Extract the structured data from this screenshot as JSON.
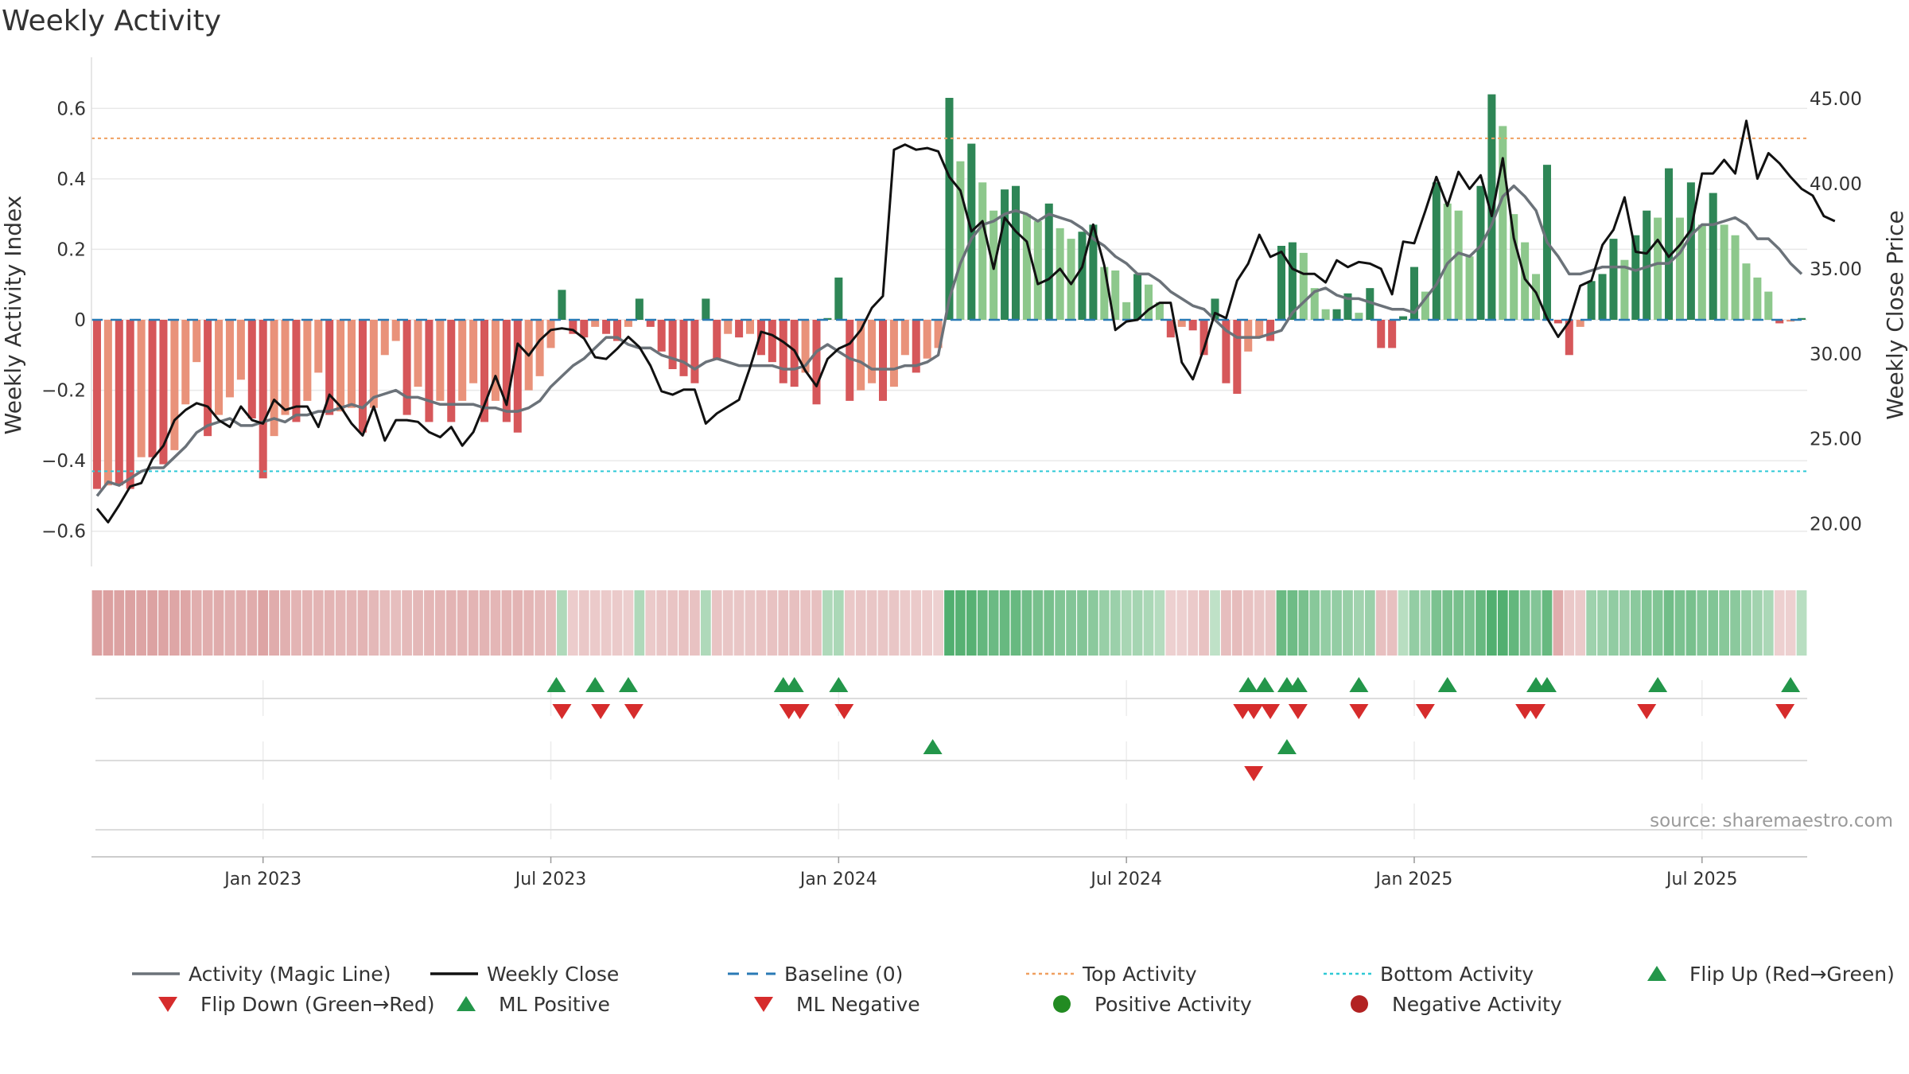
{
  "title": "Weekly Activity",
  "source": "source: sharemaestro.com",
  "chart_data": {
    "type": "bar",
    "title": "Weekly Activity",
    "ylabel": "Weekly Activity Index",
    "y2label": "Weekly Close Price",
    "ylim": [
      -0.7,
      0.7
    ],
    "y2lim": [
      17.5,
      46.5
    ],
    "yticks": [
      -0.6,
      -0.4,
      -0.2,
      0,
      0.2,
      0.4,
      0.6
    ],
    "ytick_labels": [
      "−0.6",
      "−0.4",
      "−0.2",
      "0",
      "0.2",
      "0.4",
      "0.6"
    ],
    "y2ticks": [
      20,
      25,
      30,
      35,
      40,
      45
    ],
    "y2tick_labels": [
      "20.00",
      "25.00",
      "30.00",
      "35.00",
      "40.00",
      "45.00"
    ],
    "xticks": [
      {
        "week": 15,
        "label": "Jan 2023"
      },
      {
        "week": 41,
        "label": "Jul 2023"
      },
      {
        "week": 67,
        "label": "Jan 2024"
      },
      {
        "week": 93,
        "label": "Jul 2024"
      },
      {
        "week": 119,
        "label": "Jan 2025"
      },
      {
        "week": 145,
        "label": "Jul 2025"
      }
    ],
    "top_activity": 0.515,
    "bottom_activity": -0.43,
    "activity": [
      -0.48,
      -0.47,
      -0.47,
      -0.48,
      -0.39,
      -0.39,
      -0.41,
      -0.37,
      -0.24,
      -0.12,
      -0.33,
      -0.27,
      -0.22,
      -0.17,
      -0.28,
      -0.45,
      -0.33,
      -0.27,
      -0.29,
      -0.23,
      -0.15,
      -0.27,
      -0.26,
      -0.25,
      -0.32,
      -0.25,
      -0.1,
      -0.06,
      -0.27,
      -0.19,
      -0.29,
      -0.23,
      -0.29,
      -0.23,
      -0.18,
      -0.29,
      -0.23,
      -0.29,
      -0.32,
      -0.2,
      -0.16,
      -0.08,
      0.085,
      -0.04,
      -0.05,
      -0.02,
      -0.04,
      -0.06,
      -0.02,
      0.06,
      -0.02,
      -0.09,
      -0.14,
      -0.16,
      -0.18,
      0.06,
      -0.11,
      -0.04,
      -0.05,
      -0.04,
      -0.1,
      -0.12,
      -0.18,
      -0.19,
      -0.15,
      -0.24,
      0.005,
      0.12,
      -0.23,
      -0.2,
      -0.18,
      -0.23,
      -0.19,
      -0.1,
      -0.15,
      -0.11,
      -0.08,
      0.63,
      0.45,
      0.5,
      0.39,
      0.31,
      0.37,
      0.38,
      0.3,
      0.28,
      0.33,
      0.26,
      0.23,
      0.25,
      0.27,
      0.15,
      0.14,
      0.05,
      0.13,
      0.1,
      0.05,
      -0.05,
      -0.02,
      -0.03,
      -0.1,
      0.06,
      -0.18,
      -0.21,
      -0.09,
      -0.05,
      -0.06,
      0.21,
      0.22,
      0.19,
      0.09,
      0.03,
      0.03,
      0.075,
      0.02,
      0.09,
      -0.08,
      -0.08,
      0.01,
      0.15,
      0.08,
      0.39,
      0.33,
      0.31,
      0.18,
      0.38,
      0.64,
      0.55,
      0.3,
      0.22,
      0.13,
      0.44,
      -0.01,
      -0.1,
      -0.02,
      0.11,
      0.13,
      0.23,
      0.17,
      0.24,
      0.31,
      0.29,
      0.43,
      0.29,
      0.39,
      0.27,
      0.36,
      0.27,
      0.24,
      0.16,
      0.12,
      0.08,
      -0.01,
      -0.005,
      0.005
    ],
    "close": [
      20.9,
      20.1,
      21.1,
      22.2,
      22.4,
      23.8,
      24.6,
      26.1,
      26.7,
      27.1,
      26.9,
      26.1,
      25.7,
      26.9,
      26.1,
      25.9,
      27.3,
      26.7,
      26.9,
      26.9,
      25.7,
      27.6,
      26.9,
      25.9,
      25.2,
      26.9,
      24.9,
      26.1,
      26.1,
      26.0,
      25.4,
      25.1,
      25.7,
      24.6,
      25.4,
      27.0,
      28.7,
      27.0,
      30.6,
      29.9,
      30.8,
      31.4,
      31.5,
      31.4,
      30.9,
      29.8,
      29.7,
      30.3,
      31.0,
      30.4,
      29.3,
      27.8,
      27.6,
      27.9,
      27.9,
      25.9,
      26.5,
      26.9,
      27.3,
      29.2,
      31.3,
      31.1,
      30.7,
      30.2,
      29.0,
      28.1,
      29.7,
      30.3,
      30.6,
      31.4,
      32.7,
      33.4,
      42.0,
      42.3,
      42.0,
      42.1,
      41.9,
      40.4,
      39.6,
      37.2,
      37.8,
      35.0,
      38.0,
      37.2,
      36.6,
      34.1,
      34.4,
      35.0,
      34.1,
      35.1,
      37.6,
      35.2,
      31.4,
      31.9,
      32.0,
      32.6,
      33.0,
      33.0,
      29.5,
      28.5,
      30.3,
      32.4,
      32.1,
      34.3,
      35.3,
      37.0,
      35.7,
      36.0,
      35.0,
      34.7,
      34.7,
      34.2,
      35.5,
      35.1,
      35.4,
      35.3,
      35.0,
      33.5,
      36.6,
      36.5,
      38.4,
      40.4,
      38.7,
      40.7,
      39.7,
      40.5,
      38.1,
      41.5,
      36.8,
      34.4,
      33.6,
      32.1,
      31.0,
      31.9,
      34.0,
      34.3,
      36.4,
      37.3,
      39.2,
      36.0,
      35.9,
      36.7,
      35.7,
      36.4,
      37.3,
      40.6,
      40.6,
      41.4,
      40.6,
      43.7,
      40.3,
      41.8,
      41.2,
      40.4,
      39.7,
      39.3,
      38.1,
      37.8
    ],
    "magic_line": [
      -0.5,
      -0.46,
      -0.47,
      -0.45,
      -0.43,
      -0.42,
      -0.42,
      -0.39,
      -0.36,
      -0.32,
      -0.3,
      -0.29,
      -0.28,
      -0.3,
      -0.3,
      -0.29,
      -0.28,
      -0.29,
      -0.27,
      -0.27,
      -0.26,
      -0.26,
      -0.25,
      -0.24,
      -0.25,
      -0.22,
      -0.21,
      -0.2,
      -0.22,
      -0.22,
      -0.23,
      -0.24,
      -0.24,
      -0.24,
      -0.24,
      -0.25,
      -0.25,
      -0.26,
      -0.26,
      -0.25,
      -0.23,
      -0.19,
      -0.16,
      -0.13,
      -0.11,
      -0.08,
      -0.05,
      -0.05,
      -0.07,
      -0.08,
      -0.08,
      -0.1,
      -0.11,
      -0.12,
      -0.14,
      -0.12,
      -0.11,
      -0.12,
      -0.13,
      -0.13,
      -0.13,
      -0.13,
      -0.14,
      -0.14,
      -0.13,
      -0.09,
      -0.07,
      -0.09,
      -0.11,
      -0.12,
      -0.14,
      -0.14,
      -0.14,
      -0.13,
      -0.13,
      -0.12,
      -0.1,
      0.06,
      0.16,
      0.23,
      0.27,
      0.28,
      0.3,
      0.31,
      0.3,
      0.28,
      0.3,
      0.29,
      0.28,
      0.26,
      0.23,
      0.21,
      0.18,
      0.16,
      0.13,
      0.13,
      0.11,
      0.08,
      0.06,
      0.04,
      0.03,
      0.0,
      -0.03,
      -0.05,
      -0.05,
      -0.05,
      -0.04,
      -0.03,
      0.02,
      0.05,
      0.08,
      0.09,
      0.07,
      0.06,
      0.06,
      0.05,
      0.04,
      0.03,
      0.03,
      0.02,
      0.06,
      0.1,
      0.16,
      0.19,
      0.18,
      0.21,
      0.27,
      0.35,
      0.38,
      0.35,
      0.31,
      0.22,
      0.18,
      0.13,
      0.13,
      0.14,
      0.15,
      0.15,
      0.15,
      0.14,
      0.15,
      0.16,
      0.16,
      0.19,
      0.24,
      0.27,
      0.27,
      0.28,
      0.29,
      0.27,
      0.23,
      0.23,
      0.2,
      0.16,
      0.13
    ],
    "strip_values": [
      -0.62,
      -0.62,
      -0.6,
      -0.6,
      -0.58,
      -0.6,
      -0.58,
      -0.56,
      -0.56,
      -0.48,
      -0.48,
      -0.5,
      -0.46,
      -0.48,
      -0.5,
      -0.58,
      -0.5,
      -0.46,
      -0.42,
      -0.42,
      -0.42,
      -0.42,
      -0.4,
      -0.4,
      -0.42,
      -0.38,
      -0.34,
      -0.32,
      -0.36,
      -0.38,
      -0.4,
      -0.4,
      -0.42,
      -0.42,
      -0.42,
      -0.42,
      -0.4,
      -0.42,
      -0.42,
      -0.4,
      -0.36,
      -0.34,
      0.28,
      -0.18,
      -0.22,
      -0.2,
      -0.2,
      -0.2,
      -0.16,
      0.28,
      -0.2,
      -0.24,
      -0.26,
      -0.28,
      -0.28,
      0.28,
      -0.26,
      -0.24,
      -0.24,
      -0.24,
      -0.26,
      -0.28,
      -0.3,
      -0.3,
      -0.28,
      -0.3,
      0.28,
      0.3,
      -0.22,
      -0.24,
      -0.24,
      -0.24,
      -0.24,
      -0.2,
      -0.2,
      -0.18,
      -0.14,
      0.85,
      0.82,
      0.82,
      0.74,
      0.7,
      0.72,
      0.72,
      0.66,
      0.62,
      0.62,
      0.56,
      0.55,
      0.55,
      0.5,
      0.42,
      0.4,
      0.32,
      0.34,
      0.3,
      0.24,
      -0.14,
      -0.14,
      -0.2,
      -0.28,
      0.18,
      -0.32,
      -0.34,
      -0.28,
      -0.24,
      -0.24,
      0.7,
      0.68,
      0.62,
      0.52,
      0.45,
      0.45,
      0.42,
      0.36,
      0.4,
      -0.3,
      -0.3,
      0.22,
      0.45,
      0.4,
      0.6,
      0.62,
      0.62,
      0.6,
      0.72,
      0.85,
      0.85,
      0.75,
      0.62,
      0.55,
      0.72,
      -0.5,
      -0.22,
      -0.2,
      0.38,
      0.4,
      0.46,
      0.44,
      0.5,
      0.56,
      0.56,
      0.66,
      0.6,
      0.62,
      0.55,
      0.56,
      0.52,
      0.5,
      0.42,
      0.36,
      0.3,
      -0.14,
      -0.14,
      0.22
    ],
    "flip_up_weeks": [
      41.5,
      45,
      48,
      62,
      63,
      67,
      104,
      105.5,
      107.5,
      108.5,
      114,
      122,
      130,
      131,
      141,
      153
    ],
    "flip_down_weeks": [
      42,
      45.5,
      48.5,
      62.5,
      63.5,
      67.5,
      103.5,
      104.5,
      106,
      108.5,
      114,
      120,
      129,
      130,
      140,
      152.5
    ],
    "ml_positive_weeks": [
      75.5,
      107.5
    ],
    "ml_negative_weeks": [
      104.5
    ],
    "legend": [
      {
        "label": "Activity (Magic Line)",
        "symbol": "line",
        "color": "#6b7279"
      },
      {
        "label": "Weekly Close",
        "symbol": "line",
        "color": "#111111"
      },
      {
        "label": "Baseline (0)",
        "symbol": "dash",
        "color": "#2a7ab5"
      },
      {
        "label": "Top Activity",
        "symbol": "dot",
        "color": "#f0a060"
      },
      {
        "label": "Bottom Activity",
        "symbol": "dot",
        "color": "#2fc9d6"
      },
      {
        "label": "Flip Up (Red→Green)",
        "symbol": "tri-up",
        "color": "#23964a"
      },
      {
        "label": "Flip Down (Green→Red)",
        "symbol": "tri-down",
        "color": "#d62c2c"
      },
      {
        "label": "ML Positive",
        "symbol": "tri-up",
        "color": "#23964a"
      },
      {
        "label": "ML Negative",
        "symbol": "tri-down",
        "color": "#d62c2c"
      },
      {
        "label": "Positive Activity",
        "symbol": "circle",
        "color": "#228b22"
      },
      {
        "label": "Negative Activity",
        "symbol": "circle",
        "color": "#b22222"
      }
    ],
    "colors": {
      "positive_dark": "#2e8656",
      "positive_light": "#8dc88c",
      "negative_dark": "#d6575a",
      "negative_light": "#e9927a",
      "grid": "#e9e9e9"
    }
  }
}
